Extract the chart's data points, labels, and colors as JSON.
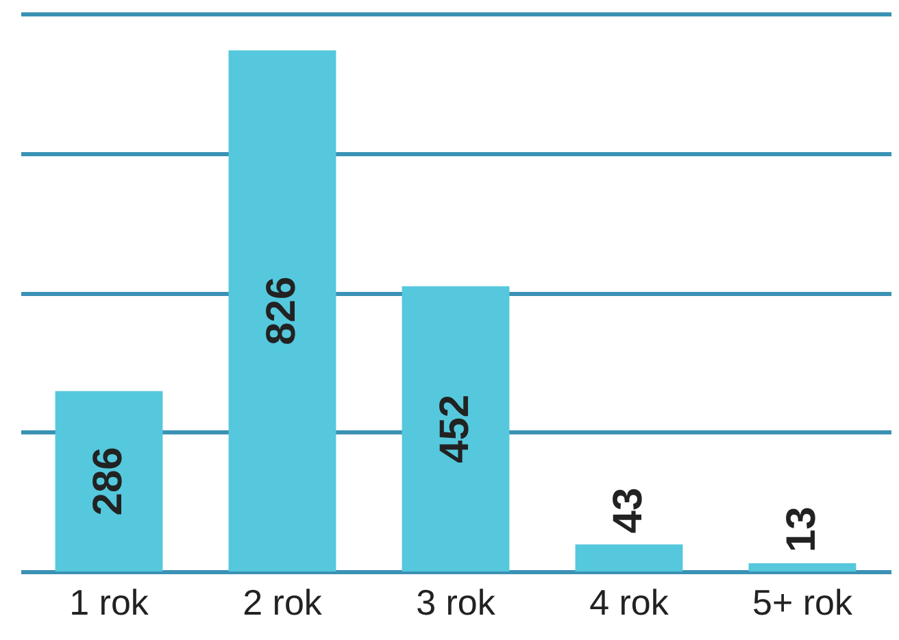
{
  "chart_data": {
    "type": "bar",
    "categories": [
      "1 rok",
      "2 rok",
      "3 rok",
      "4 rok",
      "5+ rok"
    ],
    "values": [
      286,
      826,
      452,
      43,
      13
    ],
    "color": "#55c8dd",
    "data_labels": true,
    "grid": "y",
    "tick_labels": "x",
    "ylim": [
      0,
      884
    ],
    "yticks": [
      {
        "value": 0,
        "label": null
      },
      {
        "value": 221,
        "label": null
      },
      {
        "value": 442,
        "label": null
      },
      {
        "value": 663,
        "label": null
      },
      {
        "value": 884,
        "label": null
      }
    ]
  }
}
